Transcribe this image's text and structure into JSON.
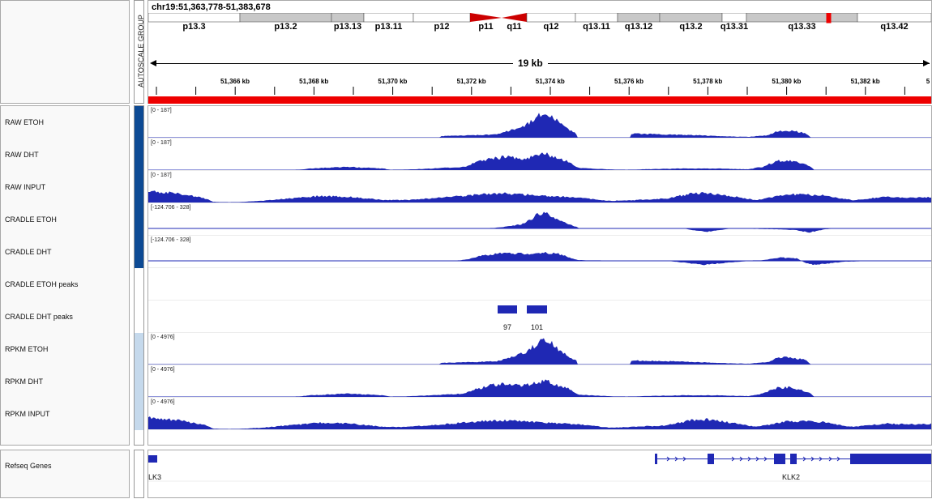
{
  "header": {
    "locus": "chr19:51,363,778-51,383,678",
    "group_label": "AUTOSCALE GROUP",
    "span_label": "19 kb",
    "bands": [
      {
        "label": "p13.3",
        "start": 0,
        "end": 113,
        "color": "#ffffff"
      },
      {
        "label": "p13.2",
        "start": 113,
        "end": 226,
        "color": "#c8c8c8"
      },
      {
        "label": "p13.13",
        "start": 226,
        "end": 266,
        "color": "#c8c8c8"
      },
      {
        "label": "p13.11",
        "start": 266,
        "end": 327,
        "color": "#ffffff"
      },
      {
        "label": "p12",
        "start": 327,
        "end": 397,
        "color": "#ffffff"
      },
      {
        "label": "p11",
        "start": 397,
        "end": 436,
        "color": "#cc0000",
        "kind": "cen-left"
      },
      {
        "label": "q11",
        "start": 436,
        "end": 467,
        "color": "#cc0000",
        "kind": "cen-right"
      },
      {
        "label": "q12",
        "start": 467,
        "end": 527,
        "color": "#ffffff"
      },
      {
        "label": "q13.11",
        "start": 527,
        "end": 579,
        "color": "#ffffff"
      },
      {
        "label": "q13.12",
        "start": 579,
        "end": 631,
        "color": "#c8c8c8"
      },
      {
        "label": "q13.2",
        "start": 631,
        "end": 708,
        "color": "#c8c8c8"
      },
      {
        "label": "q13.31",
        "start": 708,
        "end": 738,
        "color": "#ffffff"
      },
      {
        "label": "q13.33",
        "start": 738,
        "end": 875,
        "color": "#c8c8c8"
      },
      {
        "label": "q13.42",
        "start": 875,
        "end": 966,
        "color": "#ffffff"
      }
    ],
    "ticks": [
      "51,366 kb",
      "51,368 kb",
      "51,370 kb",
      "51,372 kb",
      "51,374 kb",
      "51,376 kb",
      "51,378 kb",
      "51,380 kb",
      "51,382 kb",
      "5"
    ]
  },
  "tracks": [
    {
      "name": "RAW ETOH",
      "range": "[0 - 187]",
      "group": "dark",
      "profile": "etoh"
    },
    {
      "name": "RAW DHT",
      "range": "[0 - 187]",
      "group": "dark",
      "profile": "dht"
    },
    {
      "name": "RAW INPUT",
      "range": "[0 - 187]",
      "group": "dark",
      "profile": "input"
    },
    {
      "name": "CRADLE ETOH",
      "range": "[-124.706 - 328]",
      "group": "dark",
      "profile": "cradle_etoh"
    },
    {
      "name": "CRADLE DHT",
      "range": "[-124.706 - 328]",
      "group": "dark",
      "profile": "cradle_dht"
    },
    {
      "name": "CRADLE ETOH peaks",
      "range": "",
      "group": "none",
      "profile": "none"
    },
    {
      "name": "CRADLE DHT peaks",
      "range": "",
      "group": "none",
      "profile": "peaks"
    },
    {
      "name": "RPKM ETOH",
      "range": "[0 - 4976]",
      "group": "light",
      "profile": "etoh"
    },
    {
      "name": "RPKM DHT",
      "range": "[0 - 4976]",
      "group": "light",
      "profile": "dht"
    },
    {
      "name": "RPKM INPUT",
      "range": "[0 - 4976]",
      "group": "light",
      "profile": "input"
    }
  ],
  "peaks": [
    {
      "label": "97",
      "start": 431,
      "end": 455
    },
    {
      "label": "101",
      "start": 467,
      "end": 492
    }
  ],
  "genes": {
    "track_name": "Refseq Genes",
    "items": [
      {
        "label": "LK3",
        "label_x": 0
      },
      {
        "label": "KLK2",
        "label_x": 782
      }
    ]
  },
  "colors": {
    "signal": "#1f28b4",
    "group_dark": "#0d4a94",
    "group_light": "#c5d9ec",
    "red": "#ee0000"
  }
}
